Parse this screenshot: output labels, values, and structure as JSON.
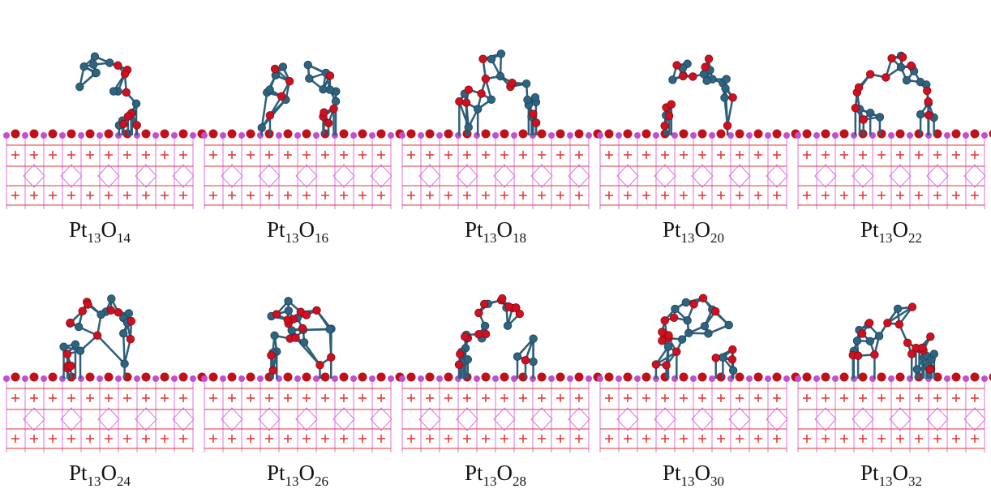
{
  "panels": [
    {
      "formula": [
        {
          "element": "Pt",
          "count": 13
        },
        {
          "element": "O",
          "count": 14
        }
      ]
    },
    {
      "formula": [
        {
          "element": "Pt",
          "count": 13
        },
        {
          "element": "O",
          "count": 16
        }
      ]
    },
    {
      "formula": [
        {
          "element": "Pt",
          "count": 13
        },
        {
          "element": "O",
          "count": 18
        }
      ]
    },
    {
      "formula": [
        {
          "element": "Pt",
          "count": 13
        },
        {
          "element": "O",
          "count": 20
        }
      ]
    },
    {
      "formula": [
        {
          "element": "Pt",
          "count": 13
        },
        {
          "element": "O",
          "count": 22
        }
      ]
    },
    {
      "formula": [
        {
          "element": "Pt",
          "count": 13
        },
        {
          "element": "O",
          "count": 24
        }
      ]
    },
    {
      "formula": [
        {
          "element": "Pt",
          "count": 13
        },
        {
          "element": "O",
          "count": 26
        }
      ]
    },
    {
      "formula": [
        {
          "element": "Pt",
          "count": 13
        },
        {
          "element": "O",
          "count": 28
        }
      ]
    },
    {
      "formula": [
        {
          "element": "Pt",
          "count": 13
        },
        {
          "element": "O",
          "count": 30
        }
      ]
    },
    {
      "formula": [
        {
          "element": "Pt",
          "count": 13
        },
        {
          "element": "O",
          "count": 32
        }
      ]
    }
  ]
}
